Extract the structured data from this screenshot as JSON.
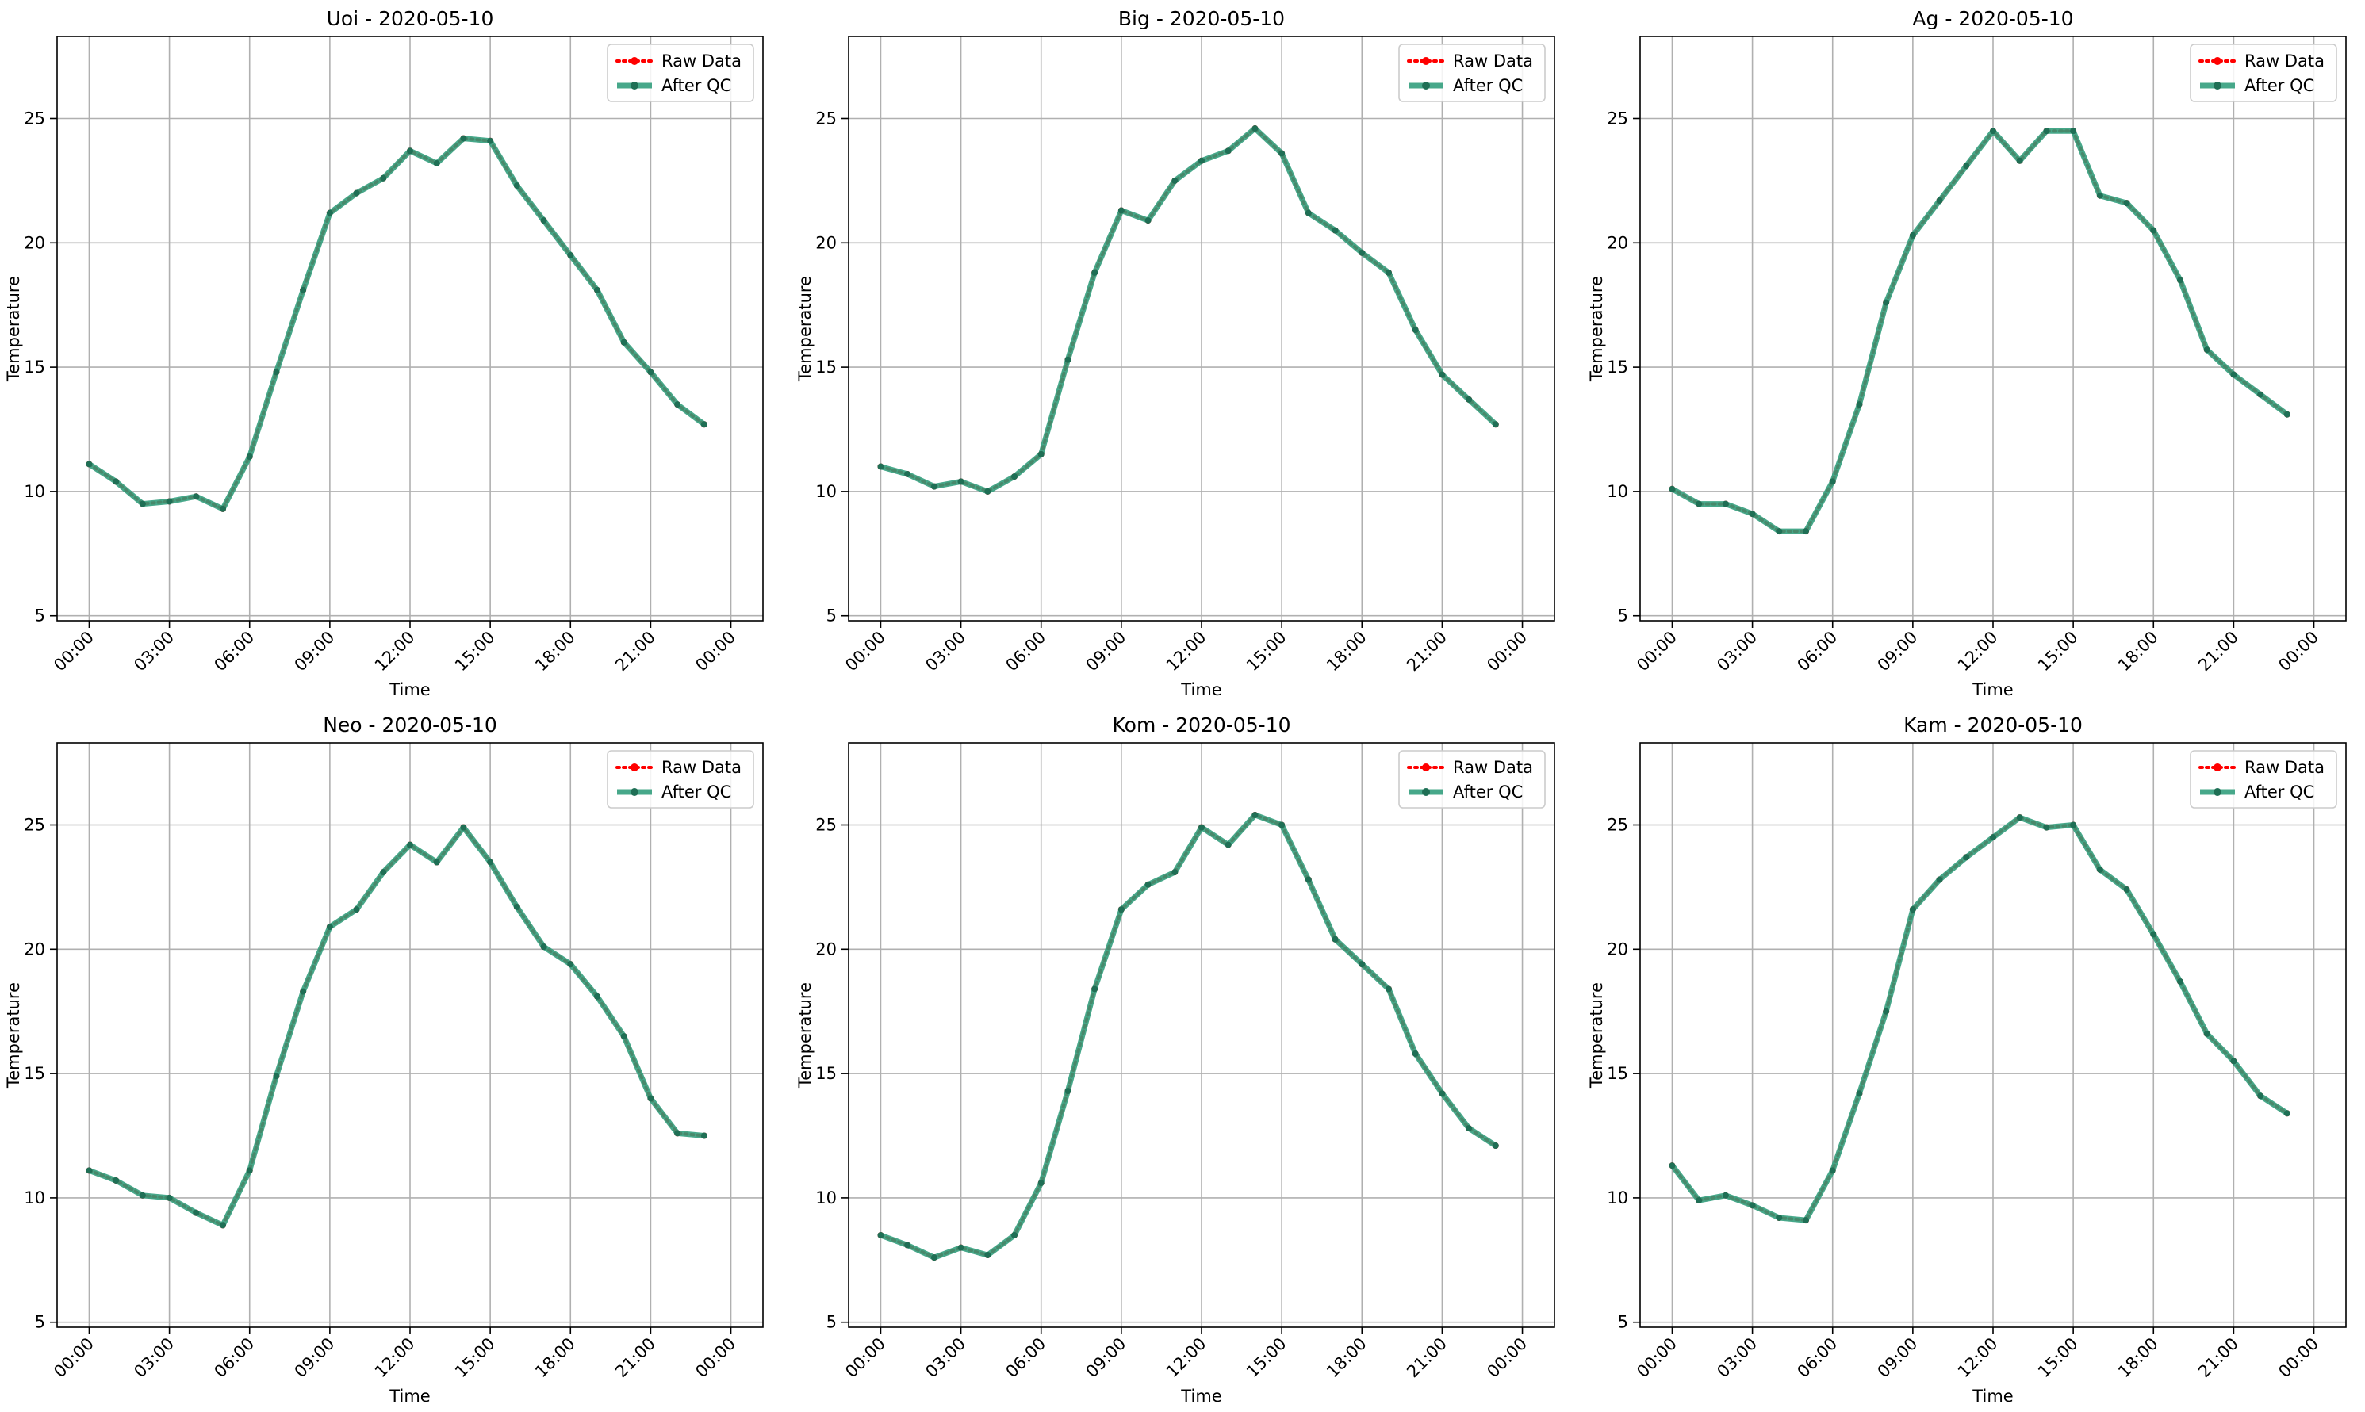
{
  "figure": {
    "x_tick_labels": [
      "00:00",
      "03:00",
      "06:00",
      "09:00",
      "12:00",
      "15:00",
      "18:00",
      "21:00",
      "00:00"
    ],
    "y_ticks": [
      5,
      10,
      15,
      20,
      25
    ]
  },
  "colors": {
    "raw": "#ff0000",
    "qc": "#2e9c7a",
    "qc_marker": "#1f6f55",
    "grid": "#b0b0b0"
  },
  "chart_data": [
    {
      "type": "line",
      "title": "Uoi - 2020-05-10",
      "xlabel": "Time",
      "ylabel": "Temperature",
      "x": [
        "00:00",
        "01:00",
        "02:00",
        "03:00",
        "04:00",
        "05:00",
        "06:00",
        "07:00",
        "08:00",
        "09:00",
        "10:00",
        "11:00",
        "12:00",
        "13:00",
        "14:00",
        "15:00",
        "16:00",
        "17:00",
        "18:00",
        "19:00",
        "20:00",
        "21:00",
        "22:00",
        "23:00"
      ],
      "xlim": [
        "2020-05-10 00:00",
        "2020-05-11 00:00"
      ],
      "ylim": [
        4.8,
        28.3
      ],
      "grid": true,
      "legend_position": "top-right",
      "series": [
        {
          "name": "Raw Data",
          "style": "dotted",
          "values": [
            11.1,
            10.4,
            9.5,
            9.6,
            9.8,
            9.3,
            11.4,
            14.8,
            18.1,
            21.2,
            22.0,
            22.6,
            23.7,
            23.2,
            24.2,
            24.1,
            22.3,
            20.9,
            19.5,
            18.1,
            16.0,
            14.8,
            13.5,
            12.7
          ]
        },
        {
          "name": "After QC",
          "style": "solid",
          "values": [
            11.1,
            10.4,
            9.5,
            9.6,
            9.8,
            9.3,
            11.4,
            14.8,
            18.1,
            21.2,
            22.0,
            22.6,
            23.7,
            23.2,
            24.2,
            24.1,
            22.3,
            20.9,
            19.5,
            18.1,
            16.0,
            14.8,
            13.5,
            12.7
          ]
        }
      ]
    },
    {
      "type": "line",
      "title": "Big - 2020-05-10",
      "xlabel": "Time",
      "ylabel": "Temperature",
      "x": [
        "00:00",
        "01:00",
        "02:00",
        "03:00",
        "04:00",
        "05:00",
        "06:00",
        "07:00",
        "08:00",
        "09:00",
        "10:00",
        "11:00",
        "12:00",
        "13:00",
        "14:00",
        "15:00",
        "16:00",
        "17:00",
        "18:00",
        "19:00",
        "20:00",
        "21:00",
        "22:00",
        "23:00"
      ],
      "xlim": [
        "2020-05-10 00:00",
        "2020-05-11 00:00"
      ],
      "ylim": [
        4.8,
        28.3
      ],
      "grid": true,
      "legend_position": "top-right",
      "series": [
        {
          "name": "Raw Data",
          "style": "dotted",
          "values": [
            11.0,
            10.7,
            10.2,
            10.4,
            10.0,
            10.6,
            11.5,
            15.3,
            18.8,
            21.3,
            20.9,
            22.5,
            23.3,
            23.7,
            24.6,
            23.6,
            21.2,
            20.5,
            19.6,
            18.8,
            16.5,
            14.7,
            13.7,
            12.7
          ]
        },
        {
          "name": "After QC",
          "style": "solid",
          "values": [
            11.0,
            10.7,
            10.2,
            10.4,
            10.0,
            10.6,
            11.5,
            15.3,
            18.8,
            21.3,
            20.9,
            22.5,
            23.3,
            23.7,
            24.6,
            23.6,
            21.2,
            20.5,
            19.6,
            18.8,
            16.5,
            14.7,
            13.7,
            12.7
          ]
        }
      ]
    },
    {
      "type": "line",
      "title": "Ag - 2020-05-10",
      "xlabel": "Time",
      "ylabel": "Temperature",
      "x": [
        "00:00",
        "01:00",
        "02:00",
        "03:00",
        "04:00",
        "05:00",
        "06:00",
        "07:00",
        "08:00",
        "09:00",
        "10:00",
        "11:00",
        "12:00",
        "13:00",
        "14:00",
        "15:00",
        "16:00",
        "17:00",
        "18:00",
        "19:00",
        "20:00",
        "21:00",
        "22:00",
        "23:00"
      ],
      "xlim": [
        "2020-05-10 00:00",
        "2020-05-11 00:00"
      ],
      "ylim": [
        4.8,
        28.3
      ],
      "grid": true,
      "legend_position": "top-right",
      "series": [
        {
          "name": "Raw Data",
          "style": "dotted",
          "values": [
            10.1,
            9.5,
            9.5,
            9.1,
            8.4,
            8.4,
            10.4,
            13.5,
            17.6,
            20.3,
            21.7,
            23.1,
            24.5,
            23.3,
            24.5,
            24.5,
            21.9,
            21.6,
            20.5,
            18.5,
            15.7,
            14.7,
            13.9,
            13.1
          ]
        },
        {
          "name": "After QC",
          "style": "solid",
          "values": [
            10.1,
            9.5,
            9.5,
            9.1,
            8.4,
            8.4,
            10.4,
            13.5,
            17.6,
            20.3,
            21.7,
            23.1,
            24.5,
            23.3,
            24.5,
            24.5,
            21.9,
            21.6,
            20.5,
            18.5,
            15.7,
            14.7,
            13.9,
            13.1
          ]
        }
      ]
    },
    {
      "type": "line",
      "title": "Neo - 2020-05-10",
      "xlabel": "Time",
      "ylabel": "Temperature",
      "x": [
        "00:00",
        "01:00",
        "02:00",
        "03:00",
        "04:00",
        "05:00",
        "06:00",
        "07:00",
        "08:00",
        "09:00",
        "10:00",
        "11:00",
        "12:00",
        "13:00",
        "14:00",
        "15:00",
        "16:00",
        "17:00",
        "18:00",
        "19:00",
        "20:00",
        "21:00",
        "22:00",
        "23:00"
      ],
      "xlim": [
        "2020-05-10 00:00",
        "2020-05-11 00:00"
      ],
      "ylim": [
        4.8,
        28.3
      ],
      "grid": true,
      "legend_position": "top-right",
      "series": [
        {
          "name": "Raw Data",
          "style": "dotted",
          "values": [
            11.1,
            10.7,
            10.1,
            10.0,
            9.4,
            8.9,
            11.1,
            14.9,
            18.3,
            20.9,
            21.6,
            23.1,
            24.2,
            23.5,
            24.9,
            23.5,
            21.7,
            20.1,
            19.4,
            18.1,
            16.5,
            14.0,
            12.6,
            12.5
          ]
        },
        {
          "name": "After QC",
          "style": "solid",
          "values": [
            11.1,
            10.7,
            10.1,
            10.0,
            9.4,
            8.9,
            11.1,
            14.9,
            18.3,
            20.9,
            21.6,
            23.1,
            24.2,
            23.5,
            24.9,
            23.5,
            21.7,
            20.1,
            19.4,
            18.1,
            16.5,
            14.0,
            12.6,
            12.5
          ]
        }
      ]
    },
    {
      "type": "line",
      "title": "Kom - 2020-05-10",
      "xlabel": "Time",
      "ylabel": "Temperature",
      "x": [
        "00:00",
        "01:00",
        "02:00",
        "03:00",
        "04:00",
        "05:00",
        "06:00",
        "07:00",
        "08:00",
        "09:00",
        "10:00",
        "11:00",
        "12:00",
        "13:00",
        "14:00",
        "15:00",
        "16:00",
        "17:00",
        "18:00",
        "19:00",
        "20:00",
        "21:00",
        "22:00",
        "23:00"
      ],
      "xlim": [
        "2020-05-10 00:00",
        "2020-05-11 00:00"
      ],
      "ylim": [
        4.8,
        28.3
      ],
      "grid": true,
      "legend_position": "top-right",
      "series": [
        {
          "name": "Raw Data",
          "style": "dotted",
          "values": [
            8.5,
            8.1,
            7.6,
            8.0,
            7.7,
            8.5,
            10.6,
            14.3,
            18.4,
            21.6,
            22.6,
            23.1,
            24.9,
            24.2,
            25.4,
            25.0,
            22.8,
            20.4,
            19.4,
            18.4,
            15.8,
            14.2,
            12.8,
            12.1
          ]
        },
        {
          "name": "After QC",
          "style": "solid",
          "values": [
            8.5,
            8.1,
            7.6,
            8.0,
            7.7,
            8.5,
            10.6,
            14.3,
            18.4,
            21.6,
            22.6,
            23.1,
            24.9,
            24.2,
            25.4,
            25.0,
            22.8,
            20.4,
            19.4,
            18.4,
            15.8,
            14.2,
            12.8,
            12.1
          ]
        }
      ]
    },
    {
      "type": "line",
      "title": "Kam - 2020-05-10",
      "xlabel": "Time",
      "ylabel": "Temperature",
      "x": [
        "00:00",
        "01:00",
        "02:00",
        "03:00",
        "04:00",
        "05:00",
        "06:00",
        "07:00",
        "08:00",
        "09:00",
        "10:00",
        "11:00",
        "12:00",
        "13:00",
        "14:00",
        "15:00",
        "16:00",
        "17:00",
        "18:00",
        "19:00",
        "20:00",
        "21:00",
        "22:00",
        "23:00"
      ],
      "xlim": [
        "2020-05-10 00:00",
        "2020-05-11 00:00"
      ],
      "ylim": [
        4.8,
        28.3
      ],
      "grid": true,
      "legend_position": "top-right",
      "series": [
        {
          "name": "Raw Data",
          "style": "dotted",
          "values": [
            11.3,
            9.9,
            10.1,
            9.7,
            9.2,
            9.1,
            11.1,
            14.2,
            17.5,
            21.6,
            22.8,
            23.7,
            24.5,
            25.3,
            24.9,
            25.0,
            23.2,
            22.4,
            20.6,
            18.7,
            16.6,
            15.5,
            14.1,
            13.4
          ]
        },
        {
          "name": "After QC",
          "style": "solid",
          "values": [
            11.3,
            9.9,
            10.1,
            9.7,
            9.2,
            9.1,
            11.1,
            14.2,
            17.5,
            21.6,
            22.8,
            23.7,
            24.5,
            25.3,
            24.9,
            25.0,
            23.2,
            22.4,
            20.6,
            18.7,
            16.6,
            15.5,
            14.1,
            13.4
          ]
        }
      ]
    }
  ]
}
